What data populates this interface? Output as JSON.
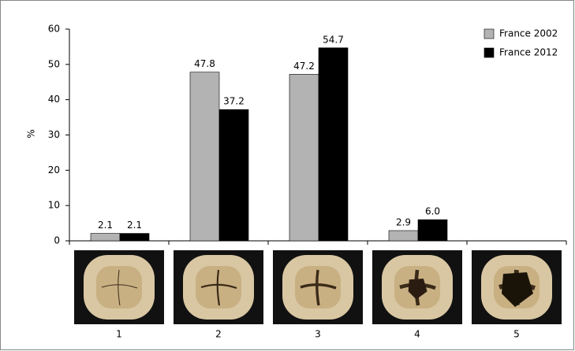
{
  "chart_data": {
    "type": "bar",
    "y_label": "%",
    "categories": [
      "1",
      "2",
      "3",
      "4",
      "5"
    ],
    "series": [
      {
        "name": "France 2002",
        "color": "#b3b3b3",
        "values": [
          2.1,
          47.8,
          47.2,
          2.9,
          null
        ]
      },
      {
        "name": "France 2012",
        "color": "#000000",
        "values": [
          2.1,
          37.2,
          54.7,
          6.0,
          null
        ],
        "value_labels": [
          "2.1",
          "37.2",
          "54.7",
          "6.0",
          null
        ]
      }
    ],
    "ylim": [
      0,
      60
    ],
    "yticks": [
      0,
      10,
      20,
      30,
      40,
      50,
      60
    ],
    "grid": false,
    "legend": "top-right"
  }
}
